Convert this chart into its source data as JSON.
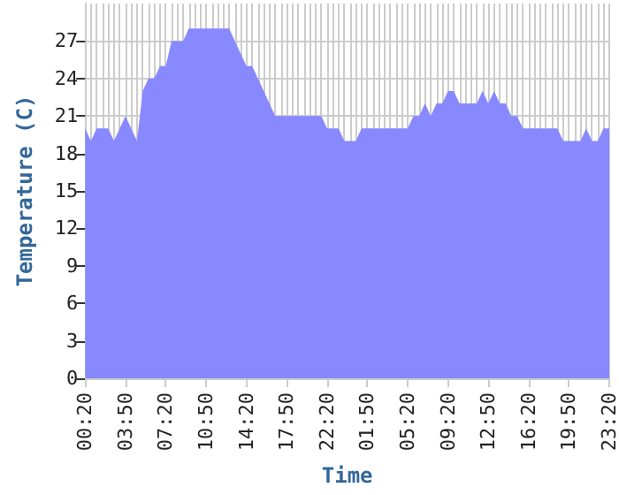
{
  "chart_data": {
    "type": "area",
    "xlabel": "Time",
    "ylabel": "Temperature (C)",
    "categories": [
      "00:20",
      null,
      null,
      null,
      null,
      null,
      null,
      "03:50",
      null,
      null,
      null,
      null,
      null,
      null,
      "07:20",
      null,
      null,
      null,
      null,
      null,
      null,
      "10:50",
      null,
      null,
      null,
      null,
      null,
      null,
      "14:20",
      null,
      null,
      null,
      null,
      null,
      null,
      "17:50",
      null,
      null,
      null,
      null,
      null,
      null,
      "22:20",
      null,
      null,
      null,
      null,
      null,
      null,
      "01:50",
      null,
      null,
      null,
      null,
      null,
      null,
      "05:20",
      null,
      null,
      null,
      null,
      null,
      null,
      "09:20",
      null,
      null,
      null,
      null,
      null,
      null,
      "12:50",
      null,
      null,
      null,
      null,
      null,
      null,
      "16:20",
      null,
      null,
      null,
      null,
      null,
      null,
      "19:50",
      null,
      null,
      null,
      null,
      null,
      null,
      "23:20"
    ],
    "series": [
      {
        "color": "#8888ff",
        "values": [
          20,
          19,
          20,
          20,
          20,
          19,
          20,
          21,
          20,
          19,
          23,
          24,
          24,
          25,
          25,
          27,
          27,
          27,
          28,
          28,
          28,
          28,
          28,
          28,
          28,
          28,
          27,
          26,
          25,
          25,
          24,
          23,
          22,
          21,
          21,
          21,
          21,
          21,
          21,
          21,
          21,
          21,
          20,
          20,
          20,
          19,
          19,
          19,
          20,
          20,
          20,
          20,
          20,
          20,
          20,
          20,
          20,
          21,
          21,
          22,
          21,
          22,
          22,
          23,
          23,
          22,
          22,
          22,
          22,
          23,
          22,
          23,
          22,
          22,
          21,
          21,
          20,
          20,
          20,
          20,
          20,
          20,
          20,
          19,
          19,
          19,
          19,
          20,
          19,
          19,
          20,
          20
        ]
      }
    ],
    "ylim": [
      0,
      30
    ],
    "yticks": [
      0,
      3,
      6,
      9,
      12,
      15,
      18,
      21,
      24,
      27
    ],
    "grid": true,
    "marker": "none"
  }
}
